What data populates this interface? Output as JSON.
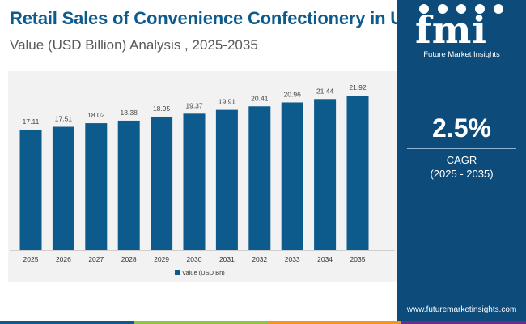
{
  "header": {
    "title": "Retail Sales of Convenience Confectionery in US",
    "subtitle": "Value (USD Billion) Analysis , 2025-2035"
  },
  "chart_data": {
    "type": "bar",
    "title": "Retail Sales of Convenience Confectionery in US",
    "categories": [
      "2025",
      "2026",
      "2027",
      "2028",
      "2029",
      "2030",
      "2031",
      "2032",
      "2033",
      "2034",
      "2035"
    ],
    "series": [
      {
        "name": "Value (USD Bn)",
        "values": [
          17.11,
          17.51,
          18.02,
          18.38,
          18.95,
          19.37,
          19.91,
          20.41,
          20.96,
          21.44,
          21.92
        ]
      }
    ],
    "value_labels": [
      "17.11",
      "17.51",
      "18.02",
      "18.38",
      "18.95",
      "19.37",
      "19.91",
      "20.41",
      "20.96",
      "21.44",
      "21.92"
    ],
    "xlabel": "",
    "ylabel": "",
    "ylim": [
      0,
      24
    ],
    "legend": "bottom-center",
    "grid": false,
    "bar_color": "#0d5a8c"
  },
  "sidebar": {
    "logo_text": "fmi",
    "logo_subtext": "Future Market Insights",
    "stat_value": "2.5%",
    "stat_label": "CAGR",
    "stat_range": "(2025 - 2035)",
    "url": "www.futuremarketinsights.com"
  },
  "colors": {
    "title": "#0d5a8c",
    "sidebar": "#0d4c7a",
    "bottom_bar": [
      "#0d5a8c",
      "#8dc63f",
      "#f7941d",
      "#6d2c8f"
    ]
  }
}
